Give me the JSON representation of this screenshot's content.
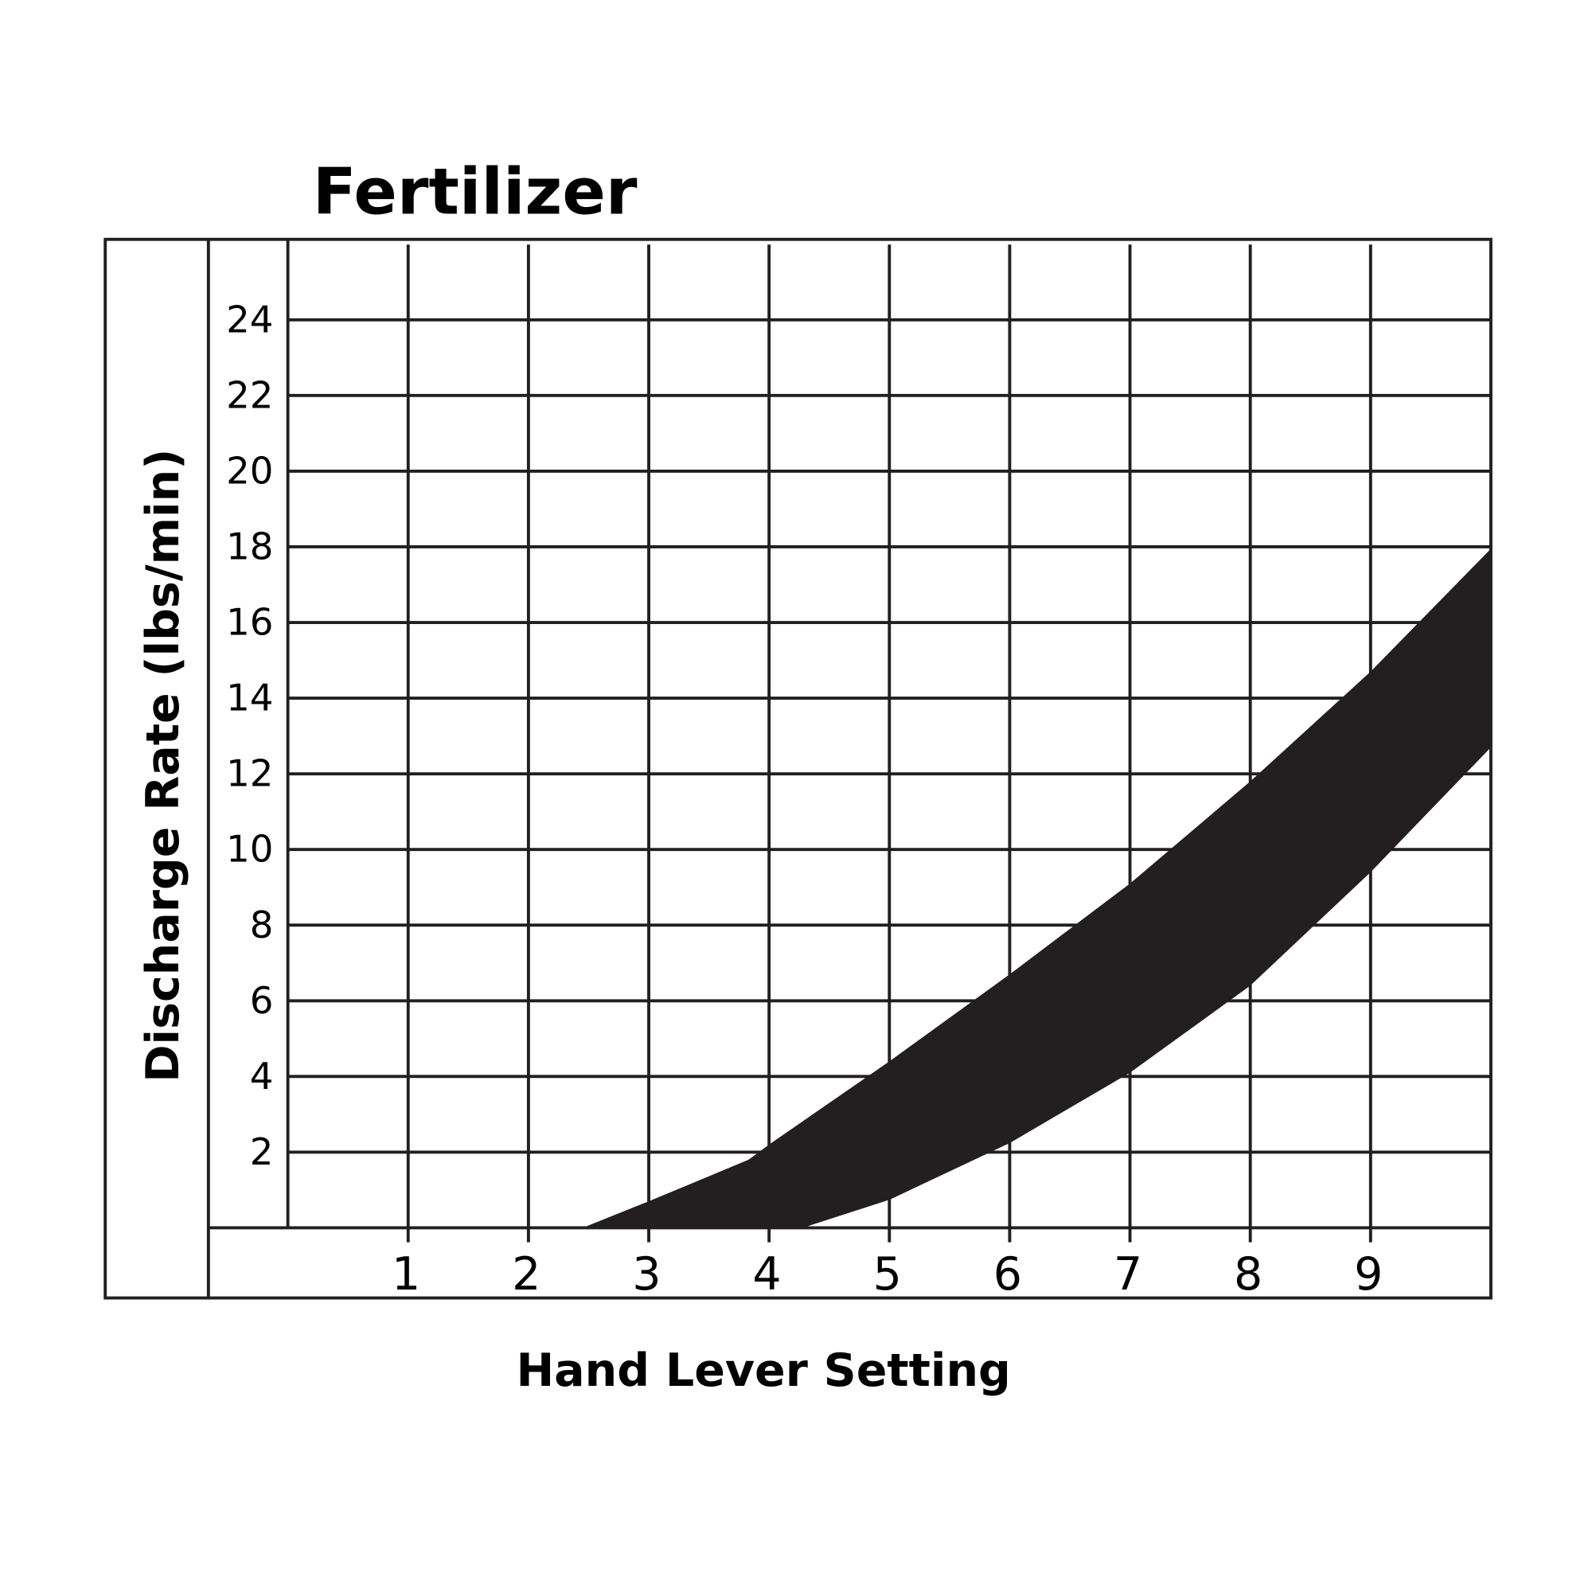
{
  "chart_data": {
    "type": "area",
    "title": "Fertilizer",
    "xlabel": "Hand Lever Setting",
    "ylabel": "Discharge Rate (lbs/min)",
    "xlim": [
      0,
      10
    ],
    "ylim": [
      0,
      26
    ],
    "x_ticks": [
      "1",
      "2",
      "3",
      "4",
      "5",
      "6",
      "7",
      "8",
      "9"
    ],
    "y_ticks": [
      "2",
      "4",
      "6",
      "8",
      "10",
      "12",
      "14",
      "16",
      "18",
      "20",
      "22",
      "24"
    ],
    "grid": true,
    "fill_color": "#231f20",
    "band": {
      "upper": {
        "x": [
          2.45,
          3.0,
          3.83,
          4,
          5,
          6,
          7,
          8,
          9,
          10
        ],
        "y": [
          0,
          0.7,
          1.8,
          2.2,
          4.4,
          6.7,
          9.1,
          11.8,
          14.7,
          17.95
        ]
      },
      "lower": {
        "x": [
          4.28,
          5,
          6,
          7,
          8,
          9,
          10
        ],
        "y": [
          0,
          0.74,
          2.24,
          4.1,
          6.4,
          9.4,
          12.7
        ]
      }
    }
  }
}
